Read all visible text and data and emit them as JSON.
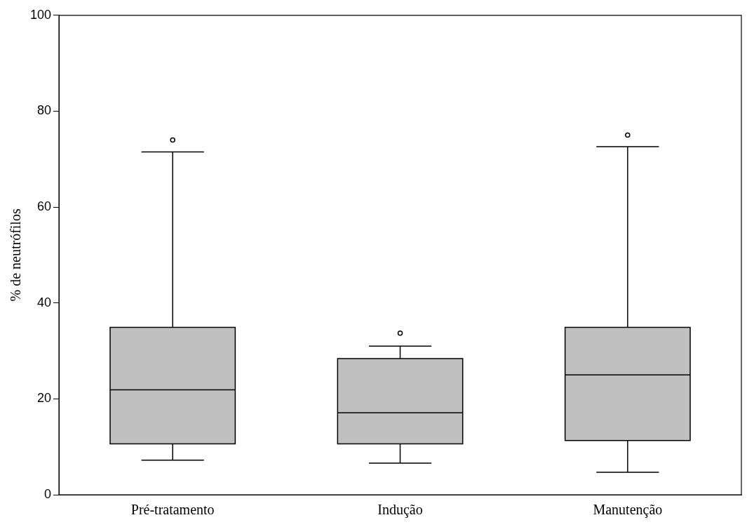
{
  "chart_data": {
    "type": "box",
    "ylabel": "% de neutrófilos",
    "categories": [
      "Pré-tratamento",
      "Indução",
      "Manutenção"
    ],
    "color": "#c0c0c0",
    "boxes": [
      {
        "low": 7.2,
        "q1": 10.6,
        "median": 21.9,
        "q3": 34.9,
        "high": 71.5,
        "outliers": [
          74
        ]
      },
      {
        "low": 6.6,
        "q1": 10.6,
        "median": 17.1,
        "q3": 28.4,
        "high": 31,
        "outliers": [
          33.7
        ]
      },
      {
        "low": 4.7,
        "q1": 11.3,
        "median": 25,
        "q3": 34.9,
        "high": 72.6,
        "outliers": [
          75
        ]
      }
    ],
    "ylim": [
      0,
      100
    ],
    "yticks": [
      0,
      20,
      40,
      60,
      80,
      100
    ],
    "grid": false,
    "legend": false
  }
}
